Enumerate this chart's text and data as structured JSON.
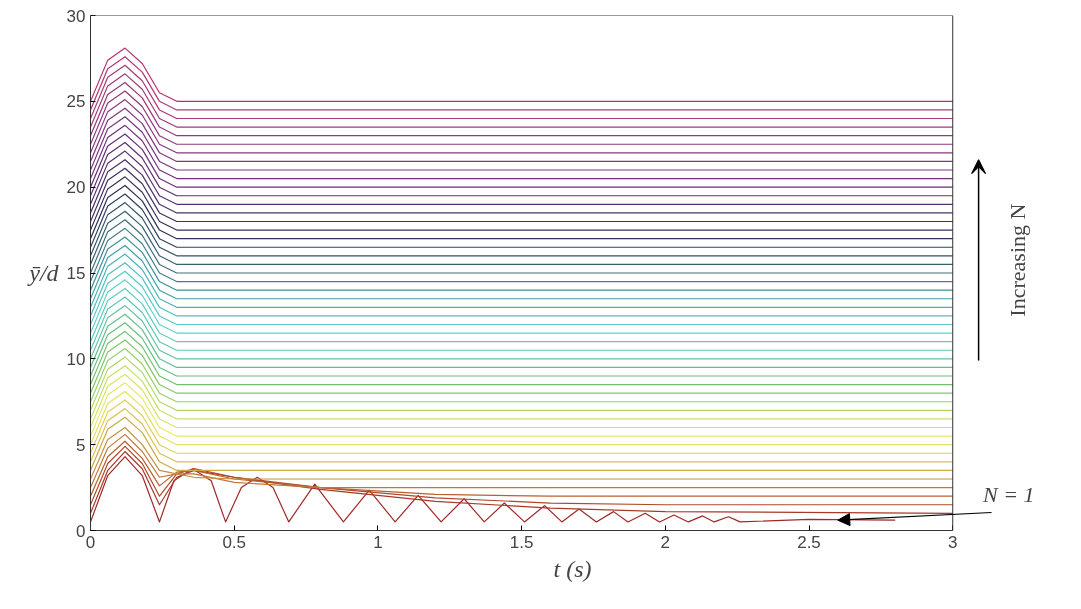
{
  "chart_data": {
    "type": "line",
    "xlabel": "t  (s)",
    "ylabel": "ȳ/d",
    "xlim": [
      0,
      3
    ],
    "ylim": [
      0,
      30
    ],
    "xticks": [
      0,
      0.5,
      1,
      1.5,
      2,
      2.5,
      3
    ],
    "yticks": [
      0,
      5,
      10,
      15,
      20,
      25,
      30
    ],
    "grid": false,
    "line_style": "solid",
    "marker": "none",
    "x": [
      0,
      0.06,
      0.12,
      0.18,
      0.24,
      0.3,
      3
    ],
    "annotations": [
      "Increasing N",
      {
        "text": "N = 1",
        "x": 2.6,
        "y": 0.6
      }
    ],
    "series": [
      {
        "color": "#a02828",
        "x": [
          0,
          0.06,
          0.12,
          0.18,
          0.24,
          0.29,
          0.355,
          0.42,
          0.47,
          0.525,
          0.58,
          0.635,
          0.69,
          0.78,
          0.88,
          0.97,
          1.06,
          1.14,
          1.22,
          1.3,
          1.37,
          1.44,
          1.51,
          1.58,
          1.64,
          1.7,
          1.76,
          1.82,
          1.87,
          1.93,
          1.98,
          2.03,
          2.08,
          2.13,
          2.17,
          2.22,
          2.26,
          2.5,
          2.8
        ],
        "values": [
          0.5,
          3.2,
          4.3,
          3.2,
          0.5,
          2.9,
          3.6,
          2.9,
          0.5,
          2.5,
          3.1,
          2.5,
          0.5,
          2.7,
          0.5,
          2.35,
          0.5,
          2.05,
          0.5,
          1.85,
          0.5,
          1.6,
          0.5,
          1.45,
          0.5,
          1.25,
          0.5,
          1.1,
          0.5,
          1.0,
          0.5,
          0.9,
          0.5,
          0.85,
          0.5,
          0.8,
          0.5,
          0.65,
          0.6
        ]
      },
      {
        "color": "#a83828",
        "x": [
          0,
          0.06,
          0.12,
          0.18,
          0.24,
          0.3,
          0.36,
          0.5,
          0.8,
          1.2,
          1.6,
          2.0,
          3
        ],
        "values": [
          1.0,
          3.5,
          4.6,
          3.6,
          1.5,
          3.1,
          3.5,
          3.1,
          2.4,
          1.7,
          1.3,
          1.1,
          1.0
        ]
      },
      {
        "color": "#b04828",
        "x": [
          0,
          0.06,
          0.12,
          0.18,
          0.24,
          0.3,
          0.36,
          0.5,
          0.8,
          1.2,
          1.6,
          2.0,
          3
        ],
        "values": [
          1.5,
          3.9,
          4.9,
          3.9,
          2.0,
          3.3,
          3.6,
          3.1,
          2.5,
          1.9,
          1.6,
          1.5,
          1.5
        ]
      },
      {
        "color": "#b86030",
        "x": [
          0,
          0.06,
          0.12,
          0.18,
          0.24,
          0.3,
          0.36,
          0.5,
          0.8,
          1.2,
          1.6,
          2.0,
          3
        ],
        "values": [
          2.0,
          4.3,
          5.2,
          4.2,
          2.6,
          3.4,
          3.5,
          3.0,
          2.5,
          2.1,
          2.0,
          2.0,
          2.0
        ]
      },
      {
        "color": "#c07838",
        "x": [
          0,
          0.06,
          0.12,
          0.18,
          0.24,
          0.3,
          0.36,
          0.5,
          0.8,
          1.2,
          1.6,
          2.0,
          3
        ],
        "values": [
          2.5,
          4.8,
          5.6,
          4.6,
          3.1,
          3.3,
          3.3,
          2.8,
          2.5,
          2.5,
          2.5,
          2.5,
          2.5
        ]
      },
      {
        "color": "#c89040",
        "x": [
          0,
          0.06,
          0.12,
          0.18,
          0.24,
          0.3,
          0.36,
          0.5,
          0.8,
          1.2,
          1.6,
          2.0,
          3
        ],
        "values": [
          3.0,
          5.3,
          6.0,
          5.0,
          3.5,
          3.3,
          3.1,
          3.0,
          3.0,
          3.0,
          3.0,
          3.0,
          3.0
        ]
      },
      {
        "color": "#d0a848",
        "values": [
          3.5,
          5.9,
          6.6,
          5.7,
          4.0,
          3.5,
          3.5
        ]
      },
      {
        "color": "#d8c050",
        "values": [
          4.0,
          6.4,
          7.1,
          6.2,
          4.5,
          4.0,
          4.0
        ]
      },
      {
        "color": "#e0d058",
        "values": [
          4.5,
          6.9,
          7.6,
          6.7,
          5.0,
          4.5,
          4.5
        ]
      },
      {
        "color": "#e8e060",
        "values": [
          5.0,
          7.4,
          8.1,
          7.2,
          5.5,
          5.0,
          5.0
        ]
      },
      {
        "color": "#e8e868",
        "values": [
          5.5,
          7.9,
          8.6,
          7.7,
          6.0,
          5.5,
          5.5
        ]
      },
      {
        "color": "#d8e468",
        "values": [
          6.0,
          8.4,
          9.1,
          8.2,
          6.5,
          6.0,
          6.0
        ]
      },
      {
        "color": "#c8e068",
        "values": [
          6.5,
          8.9,
          9.6,
          8.7,
          7.0,
          6.5,
          6.5
        ]
      },
      {
        "color": "#b0d868",
        "values": [
          7.0,
          9.4,
          10.1,
          9.2,
          7.5,
          7.0,
          7.0
        ]
      },
      {
        "color": "#98d068",
        "values": [
          7.5,
          9.9,
          10.6,
          9.7,
          8.0,
          7.5,
          7.5
        ]
      },
      {
        "color": "#80c868",
        "values": [
          8.0,
          10.4,
          11.1,
          10.2,
          8.5,
          8.0,
          8.0
        ]
      },
      {
        "color": "#70c070",
        "values": [
          8.5,
          10.9,
          11.6,
          10.7,
          9.0,
          8.5,
          8.5
        ]
      },
      {
        "color": "#68c080",
        "values": [
          9.0,
          11.4,
          12.1,
          11.2,
          9.5,
          9.0,
          9.0
        ]
      },
      {
        "color": "#60c090",
        "values": [
          9.5,
          11.9,
          12.6,
          11.7,
          10.0,
          9.5,
          9.5
        ]
      },
      {
        "color": "#60c4a0",
        "values": [
          10.0,
          12.4,
          13.1,
          12.2,
          10.5,
          10.0,
          10.0
        ]
      },
      {
        "color": "#60c8b0",
        "values": [
          10.5,
          12.9,
          13.6,
          12.7,
          11.0,
          10.5,
          10.5
        ]
      },
      {
        "color": "#60ccc0",
        "values": [
          11.0,
          13.4,
          14.1,
          13.2,
          11.5,
          11.0,
          11.0
        ]
      },
      {
        "color": "#60d0c8",
        "values": [
          11.5,
          13.9,
          14.6,
          13.7,
          12.0,
          11.5,
          11.5
        ]
      },
      {
        "color": "#58c8c8",
        "values": [
          12.0,
          14.4,
          15.1,
          14.2,
          12.5,
          12.0,
          12.0
        ]
      },
      {
        "color": "#50c0c0",
        "values": [
          12.5,
          14.9,
          15.6,
          14.7,
          13.0,
          12.5,
          12.5
        ]
      },
      {
        "color": "#48b0b8",
        "values": [
          13.0,
          15.4,
          16.1,
          15.2,
          13.5,
          13.0,
          13.0
        ]
      },
      {
        "color": "#40a0a8",
        "values": [
          13.5,
          15.9,
          16.6,
          15.7,
          14.0,
          13.5,
          13.5
        ]
      },
      {
        "color": "#409098",
        "values": [
          14.0,
          16.4,
          17.1,
          16.2,
          14.5,
          14.0,
          14.0
        ]
      },
      {
        "color": "#408088",
        "values": [
          14.5,
          16.9,
          17.6,
          16.7,
          15.0,
          14.5,
          14.5
        ]
      },
      {
        "color": "#407078",
        "values": [
          15.0,
          17.4,
          18.1,
          17.2,
          15.5,
          15.0,
          15.0
        ]
      },
      {
        "color": "#386070",
        "values": [
          15.5,
          17.9,
          18.6,
          17.7,
          16.0,
          15.5,
          15.5
        ]
      },
      {
        "color": "#305068",
        "values": [
          16.0,
          18.4,
          19.1,
          18.2,
          16.5,
          16.0,
          16.0
        ]
      },
      {
        "color": "#304060",
        "values": [
          16.5,
          18.9,
          19.6,
          18.7,
          17.0,
          16.5,
          16.5
        ]
      },
      {
        "color": "#303058",
        "values": [
          17.0,
          19.4,
          20.1,
          19.2,
          17.5,
          17.0,
          17.0
        ]
      },
      {
        "color": "#383058",
        "values": [
          17.5,
          19.9,
          20.6,
          19.7,
          18.0,
          17.5,
          17.5
        ]
      },
      {
        "color": "#403060",
        "values": [
          18.0,
          20.4,
          21.1,
          20.2,
          18.5,
          18.0,
          18.0
        ]
      },
      {
        "color": "#503068",
        "values": [
          18.5,
          20.9,
          21.6,
          20.7,
          19.0,
          18.5,
          18.5
        ]
      },
      {
        "color": "#583070",
        "values": [
          19.0,
          21.4,
          22.1,
          21.2,
          19.5,
          19.0,
          19.0
        ]
      },
      {
        "color": "#603070",
        "values": [
          19.5,
          21.9,
          22.6,
          21.7,
          20.0,
          19.5,
          19.5
        ]
      },
      {
        "color": "#683078",
        "values": [
          20.0,
          22.4,
          23.1,
          22.2,
          20.5,
          20.0,
          20.0
        ]
      },
      {
        "color": "#703078",
        "values": [
          20.5,
          22.9,
          23.6,
          22.7,
          21.0,
          20.5,
          20.5
        ]
      },
      {
        "color": "#783880",
        "values": [
          21.0,
          23.4,
          24.1,
          23.2,
          21.5,
          21.0,
          21.0
        ]
      },
      {
        "color": "#803880",
        "values": [
          21.5,
          23.9,
          24.6,
          23.7,
          22.0,
          21.5,
          21.5
        ]
      },
      {
        "color": "#883880",
        "values": [
          22.0,
          24.4,
          25.1,
          24.2,
          22.5,
          22.0,
          22.0
        ]
      },
      {
        "color": "#903880",
        "values": [
          22.5,
          24.9,
          25.6,
          24.7,
          23.0,
          22.5,
          22.5
        ]
      },
      {
        "color": "#983878",
        "values": [
          23.0,
          25.4,
          26.1,
          25.2,
          23.5,
          23.0,
          23.0
        ]
      },
      {
        "color": "#a03878",
        "values": [
          23.5,
          25.9,
          26.6,
          25.7,
          24.0,
          23.5,
          23.5
        ]
      },
      {
        "color": "#a83878",
        "values": [
          24.0,
          26.4,
          27.1,
          26.2,
          24.5,
          24.0,
          24.0
        ]
      },
      {
        "color": "#b03878",
        "values": [
          24.5,
          26.9,
          27.6,
          26.7,
          25.0,
          24.5,
          24.5
        ]
      },
      {
        "color": "#b83070",
        "values": [
          25.0,
          27.4,
          28.1,
          27.2,
          25.5,
          25.0,
          25.0
        ]
      }
    ]
  }
}
